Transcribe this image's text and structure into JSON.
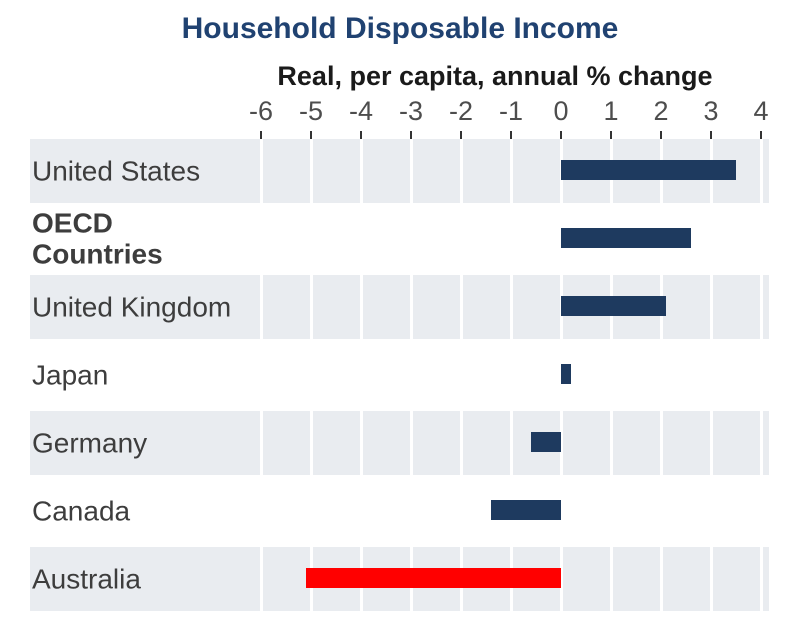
{
  "title": "Household Disposable Income",
  "subtitle": "Real, per capita, annual % change",
  "chart_data": {
    "type": "bar",
    "orientation": "horizontal",
    "title": "Household Disposable Income",
    "subtitle": "Real, per capita, annual % change",
    "xlabel": "Real, per capita, annual % change",
    "x_ticks": [
      -6,
      -5,
      -4,
      -3,
      -2,
      -1,
      0,
      1,
      2,
      3,
      4
    ],
    "xlim": [
      -6.2,
      4.2
    ],
    "grid": true,
    "legend": false,
    "categories": [
      "United States",
      "OECD Countries",
      "United Kingdom",
      "Japan",
      "Germany",
      "Canada",
      "Australia"
    ],
    "values": [
      3.5,
      2.6,
      2.1,
      0.2,
      -0.6,
      -1.4,
      -5.1
    ],
    "bar_colors": [
      "#1e3a5f",
      "#1e3a5f",
      "#1e3a5f",
      "#1e3a5f",
      "#1e3a5f",
      "#1e3a5f",
      "#ff0000"
    ],
    "highlighted_category": "Australia",
    "bold_categories": [
      "OECD Countries"
    ],
    "wrapped_labels": {
      "OECD Countries": "OECD\nCountries"
    }
  },
  "colors": {
    "bar": "#1e3a5f",
    "highlight": "#ff0000",
    "row_stripe": "#e9ecf0",
    "gridline": "#ffffff",
    "title": "#204271",
    "subtitle": "#1a1a1a",
    "axis_text": "#4d4d4d",
    "label_text": "#3d3d3d",
    "tick": "#333333",
    "background": "#ffffff"
  }
}
